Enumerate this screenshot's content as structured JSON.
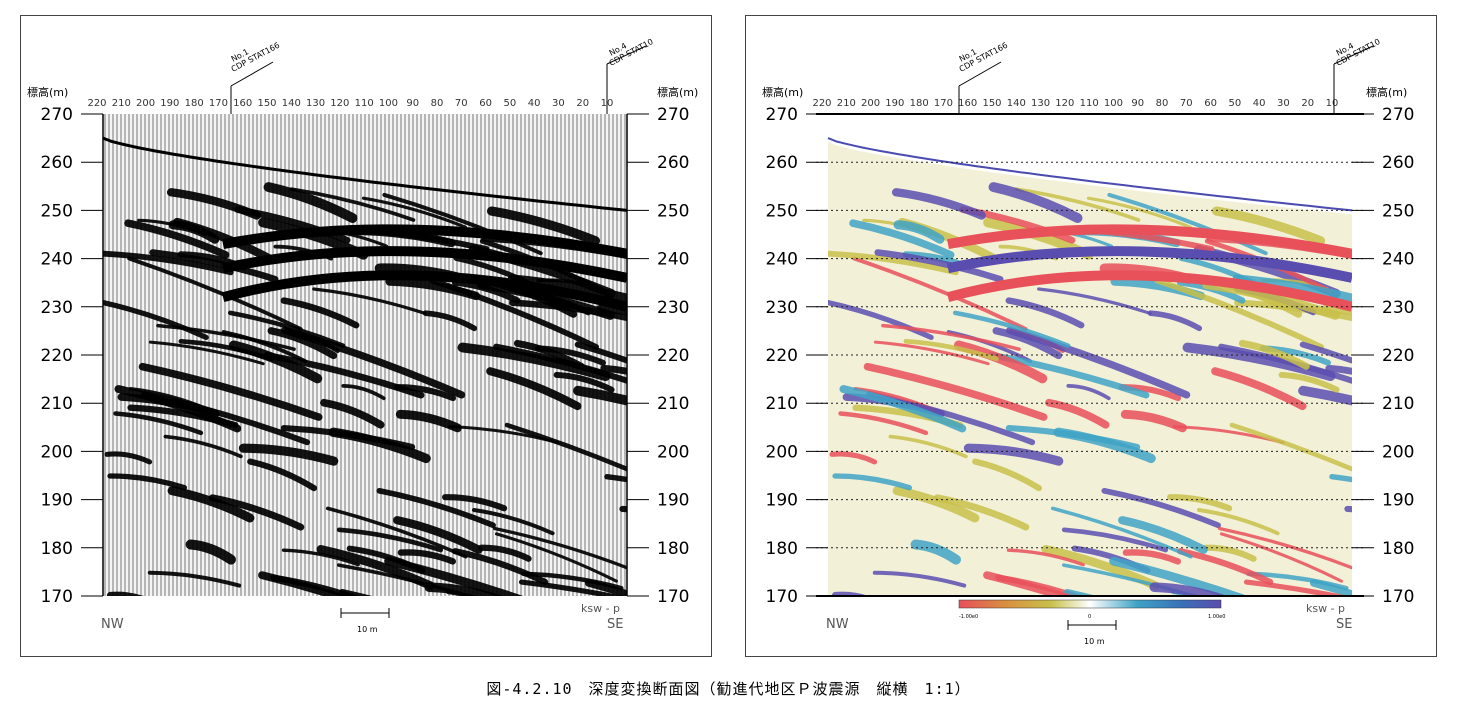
{
  "caption": "図-4.2.10　深度変換断面図（勧進代地区Ｐ波震源　縦横　1:1）",
  "axes": {
    "y_title": "標高(m)",
    "y_ticks": [
      "270",
      "260",
      "250",
      "240",
      "230",
      "220",
      "210",
      "200",
      "190",
      "180",
      "170"
    ],
    "x_ticks": [
      "220",
      "210",
      "200",
      "190",
      "180",
      "170",
      "160",
      "150",
      "140",
      "130",
      "120",
      "110",
      "100",
      "90",
      "80",
      "70",
      "60",
      "50",
      "40",
      "30",
      "20",
      "10"
    ]
  },
  "markers": [
    {
      "line1": "No.1",
      "line2": "CDP STAT166"
    },
    {
      "line1": "No.4",
      "line2": "CDP STAT10"
    }
  ],
  "left_panel": {
    "nw_label": "NW",
    "se_label": "SE",
    "tag": "ksw - p",
    "scale_bar": "10 m"
  },
  "right_panel": {
    "nw_label": "NW",
    "se_label": "SE",
    "tag": "ksw - p",
    "scale_bar": "10 m",
    "colorbar_min": "-1.00e0",
    "colorbar_mid": "0",
    "colorbar_max": "1.00e0"
  },
  "colors": {
    "positive": "#e8505a",
    "negative": "#5a4db0",
    "yellow": "#c8c04a",
    "cyan": "#3fa3c6",
    "surface_line": "#4a4ab0"
  }
}
